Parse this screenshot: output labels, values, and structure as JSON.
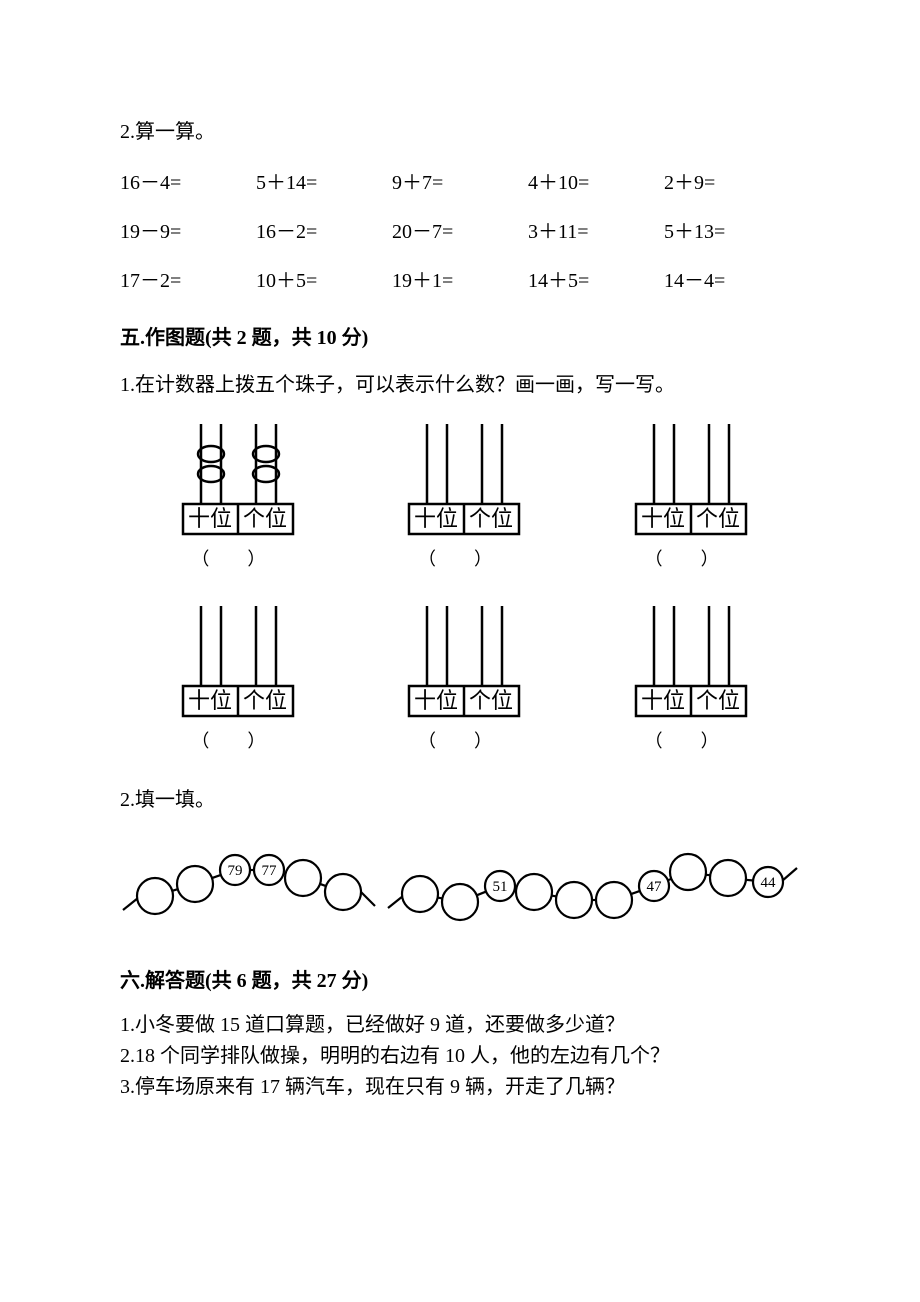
{
  "q2calc": {
    "heading": "2.算一算。",
    "rows": [
      [
        "16－4=",
        "5＋14=",
        "9＋7=",
        "4＋10=",
        "2＋9="
      ],
      [
        "19－9=",
        "16－2=",
        "20－7=",
        "3＋11=",
        "5＋13="
      ],
      [
        "17－2=",
        "10＋5=",
        "19＋1=",
        "14＋5=",
        "14－4="
      ]
    ]
  },
  "section5": {
    "title": "五.作图题(共 2 题，共 10 分)",
    "q1": {
      "text": "1.在计数器上拨五个珠子，可以表示什么数？画一画，写一写。",
      "labels": {
        "tens": "十位",
        "ones": "个位"
      },
      "paren": "（　）",
      "stroke": "#000000",
      "font_family": "KaiTi, STKaiti, serif",
      "label_fontsize": 22
    },
    "q2": {
      "text": "2.填一填。",
      "left_chain": {
        "nodes": [
          {
            "r": 18,
            "label": ""
          },
          {
            "r": 18,
            "label": ""
          },
          {
            "r": 15,
            "label": "79"
          },
          {
            "r": 15,
            "label": "77"
          },
          {
            "r": 18,
            "label": ""
          },
          {
            "r": 18,
            "label": ""
          }
        ]
      },
      "right_chain": {
        "nodes": [
          {
            "r": 18,
            "label": ""
          },
          {
            "r": 18,
            "label": ""
          },
          {
            "r": 15,
            "label": "51"
          },
          {
            "r": 18,
            "label": ""
          },
          {
            "r": 18,
            "label": ""
          },
          {
            "r": 18,
            "label": ""
          },
          {
            "r": 15,
            "label": "47"
          },
          {
            "r": 18,
            "label": ""
          },
          {
            "r": 18,
            "label": ""
          },
          {
            "r": 15,
            "label": "44"
          }
        ]
      },
      "stroke": "#000000",
      "label_fontsize": 15
    }
  },
  "section6": {
    "title": "六.解答题(共 6 题，共 27 分)",
    "items": [
      "1.小冬要做 15 道口算题，已经做好 9 道，还要做多少道？",
      "2.18 个同学排队做操，明明的右边有 10 人，他的左边有几个？",
      "3.停车场原来有 17 辆汽车，现在只有 9 辆，开走了几辆？"
    ]
  }
}
